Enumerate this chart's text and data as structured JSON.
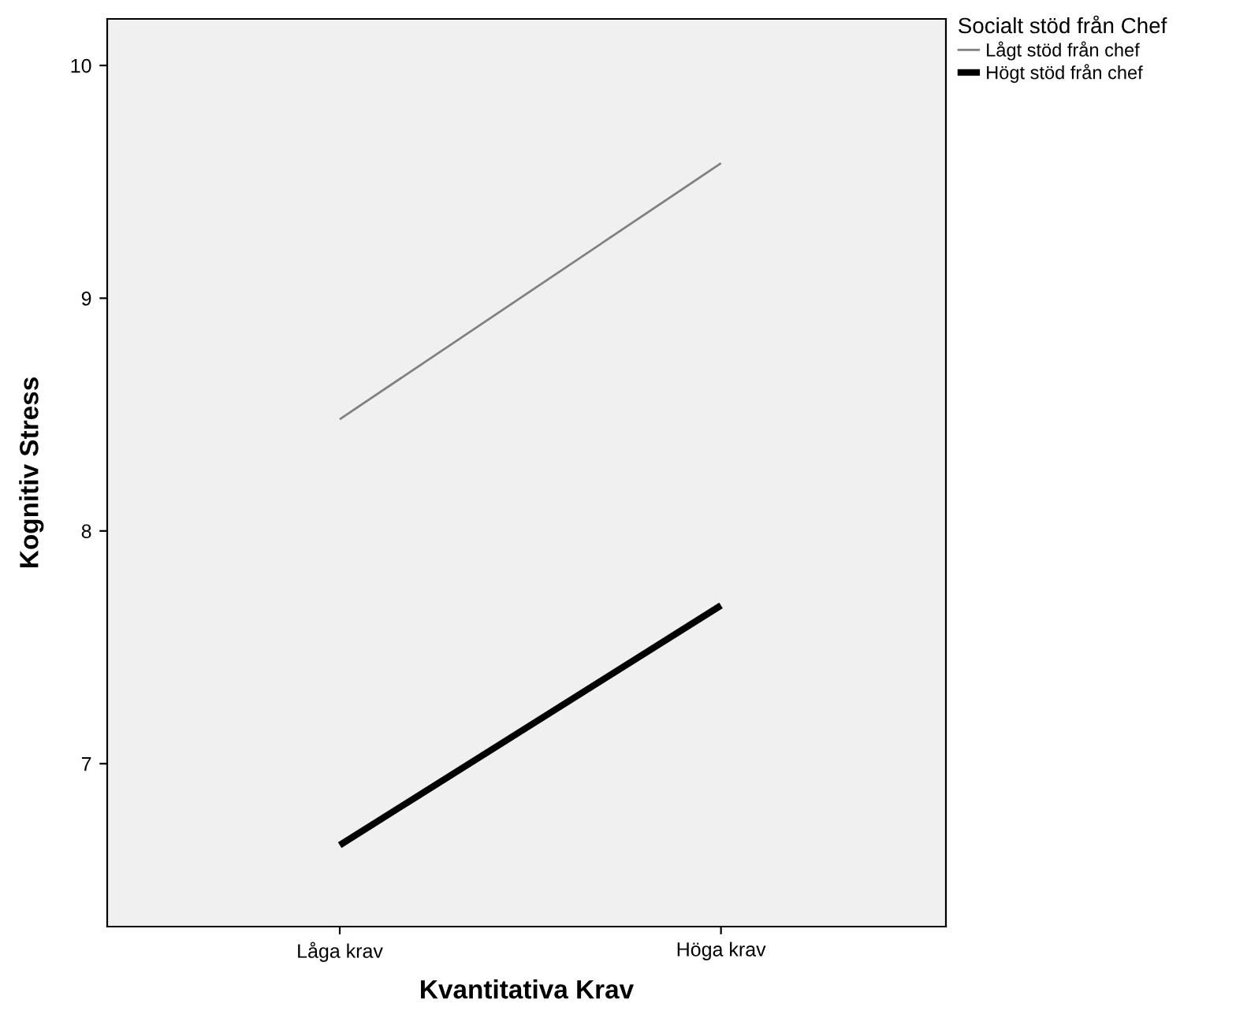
{
  "chart_data": {
    "type": "line",
    "xlabel": "Kvantitativa Krav",
    "ylabel": "Kognitiv Stress",
    "legend_title": "Socialt stöd från Chef",
    "categories": [
      "Låga krav",
      "Höga krav"
    ],
    "series": [
      {
        "name": "Lågt stöd från chef",
        "color": "#808080",
        "values": [
          8.48,
          9.58
        ]
      },
      {
        "name": "Högt stöd från chef",
        "color": "#000000",
        "values": [
          6.65,
          7.68
        ]
      }
    ],
    "ylim": [
      6.3,
      10.2
    ],
    "yticks": [
      7,
      8,
      9,
      10
    ],
    "grid": false,
    "legend": "top right",
    "marker": "none",
    "line_style": "solid"
  }
}
